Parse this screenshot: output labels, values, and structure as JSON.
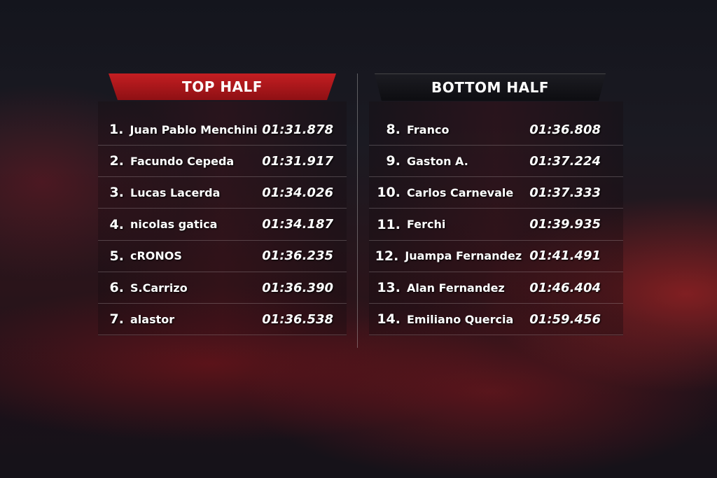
{
  "top_half": {
    "title": "TOP HALF",
    "rows": [
      {
        "pos": "1.",
        "name": "Juan Pablo Menchini",
        "time": "01:31.878"
      },
      {
        "pos": "2.",
        "name": "Facundo Cepeda",
        "time": "01:31.917"
      },
      {
        "pos": "3.",
        "name": "Lucas Lacerda",
        "time": "01:34.026"
      },
      {
        "pos": "4.",
        "name": "nicolas gatica",
        "time": "01:34.187"
      },
      {
        "pos": "5.",
        "name": "cRONOS",
        "time": "01:36.235"
      },
      {
        "pos": "6.",
        "name": "S.Carrizo",
        "time": "01:36.390"
      },
      {
        "pos": "7.",
        "name": "alastor",
        "time": "01:36.538"
      }
    ]
  },
  "bottom_half": {
    "title": "BOTTOM HALF",
    "rows": [
      {
        "pos": "8.",
        "name": "Franco",
        "time": "01:36.808"
      },
      {
        "pos": "9.",
        "name": "Gaston A.",
        "time": "01:37.224"
      },
      {
        "pos": "10.",
        "name": "Carlos Carnevale",
        "time": "01:37.333"
      },
      {
        "pos": "11.",
        "name": "Ferchi",
        "time": "01:39.935"
      },
      {
        "pos": "12.",
        "name": "Juampa Fernandez",
        "time": "01:41.491"
      },
      {
        "pos": "13.",
        "name": "Alan Fernandez",
        "time": "01:46.404"
      },
      {
        "pos": "14.",
        "name": "Emiliano Quercia",
        "time": "01:59.456"
      }
    ]
  },
  "colors": {
    "accent_red": "#c41e22",
    "header_dark": "#141418"
  }
}
